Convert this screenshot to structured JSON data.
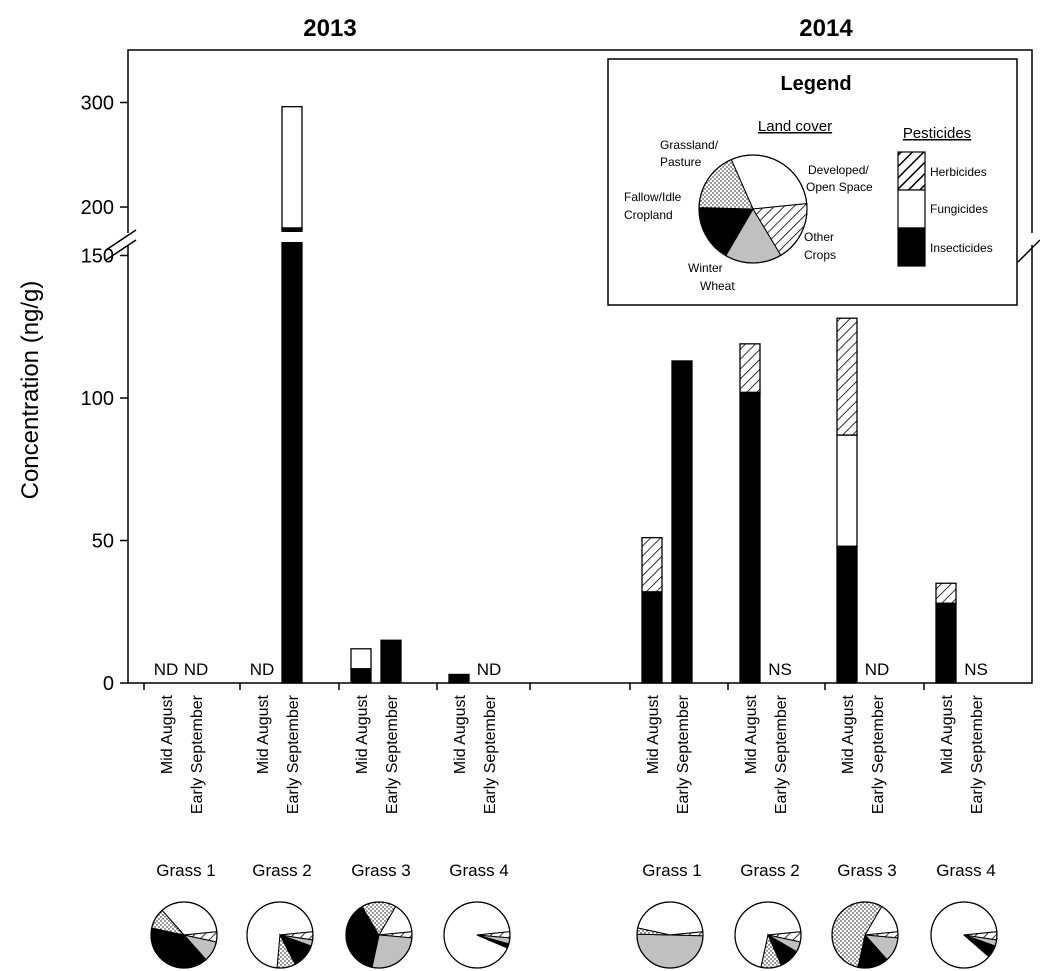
{
  "chart_data": {
    "type": "bar",
    "stacked": true,
    "ylabel": "Concentration (ng/g)",
    "y_axis_break": [
      150,
      200
    ],
    "yticks": [
      "0",
      "50",
      "100",
      "150",
      "200",
      "300"
    ],
    "panels": [
      {
        "year": "2013",
        "sites": [
          {
            "name": "Grass 1",
            "samples": [
              {
                "date": "Mid August",
                "insecticides": null,
                "fungicides": null,
                "herbicides": null,
                "note": "ND"
              },
              {
                "date": "Early September",
                "insecticides": null,
                "fungicides": null,
                "herbicides": null,
                "note": "ND"
              }
            ],
            "land_cover": {
              "Grassland/Pasture": 35,
              "Developed/Open Space": 5,
              "Other Crops": 10,
              "Winter Wheat": 40,
              "Fallow/Idle Cropland": 10
            }
          },
          {
            "name": "Grass 2",
            "samples": [
              {
                "date": "Mid August",
                "insecticides": null,
                "fungicides": null,
                "herbicides": null,
                "note": "ND"
              },
              {
                "date": "Early September",
                "insecticides": 180,
                "fungicides": 116,
                "herbicides": 0,
                "note": ""
              }
            ],
            "land_cover": {
              "Grassland/Pasture": 72,
              "Developed/Open Space": 4,
              "Other Crops": 3,
              "Winter Wheat": 12,
              "Fallow/Idle Cropland": 9
            }
          },
          {
            "name": "Grass 3",
            "samples": [
              {
                "date": "Mid August",
                "insecticides": 5,
                "fungicides": 7,
                "herbicides": 0,
                "note": ""
              },
              {
                "date": "Early September",
                "insecticides": 15,
                "fungicides": 0,
                "herbicides": 0,
                "note": ""
              }
            ],
            "land_cover": {
              "Grassland/Pasture": 15,
              "Developed/Open Space": 3,
              "Other Crops": 27,
              "Winter Wheat": 38,
              "Fallow/Idle Cropland": 17
            }
          },
          {
            "name": "Grass 4",
            "samples": [
              {
                "date": "Mid August",
                "insecticides": 3,
                "fungicides": 0,
                "herbicides": 0,
                "note": ""
              },
              {
                "date": "Early September",
                "insecticides": null,
                "fungicides": null,
                "herbicides": null,
                "note": "ND"
              }
            ],
            "land_cover": {
              "Grassland/Pasture": 92,
              "Developed/Open Space": 3,
              "Other Crops": 3,
              "Winter Wheat": 2,
              "Fallow/Idle Cropland": 0
            }
          }
        ]
      },
      {
        "year": "2014",
        "sites": [
          {
            "name": "Grass 1",
            "samples": [
              {
                "date": "Mid August",
                "insecticides": 32,
                "fungicides": 0,
                "herbicides": 19,
                "note": ""
              },
              {
                "date": "Early September",
                "insecticides": 113,
                "fungicides": 0,
                "herbicides": 0,
                "note": ""
              }
            ],
            "land_cover": {
              "Grassland/Pasture": 45,
              "Developed/Open Space": 2,
              "Other Crops": 50,
              "Winter Wheat": 0,
              "Fallow/Idle Cropland": 3
            }
          },
          {
            "name": "Grass 2",
            "samples": [
              {
                "date": "Mid August",
                "insecticides": 102,
                "fungicides": 0,
                "herbicides": 17,
                "note": ""
              },
              {
                "date": "Early September",
                "insecticides": null,
                "fungicides": null,
                "herbicides": null,
                "note": "NS"
              }
            ],
            "land_cover": {
              "Grassland/Pasture": 70,
              "Developed/Open Space": 5,
              "Other Crops": 5,
              "Winter Wheat": 10,
              "Fallow/Idle Cropland": 10
            }
          },
          {
            "name": "Grass 3",
            "samples": [
              {
                "date": "Mid August",
                "insecticides": 48,
                "fungicides": 39,
                "herbicides": 41,
                "note": ""
              },
              {
                "date": "Early September",
                "insecticides": null,
                "fungicides": null,
                "herbicides": null,
                "note": "ND"
              }
            ],
            "land_cover": {
              "Grassland/Pasture": 15,
              "Developed/Open Space": 3,
              "Other Crops": 12,
              "Winter Wheat": 15,
              "Fallow/Idle Cropland": 55
            }
          },
          {
            "name": "Grass 4",
            "samples": [
              {
                "date": "Mid August",
                "insecticides": 28,
                "fungicides": 0,
                "herbicides": 7,
                "note": ""
              },
              {
                "date": "Early September",
                "insecticides": null,
                "fungicides": null,
                "herbicides": null,
                "note": "NS"
              }
            ],
            "land_cover": {
              "Grassland/Pasture": 87,
              "Developed/Open Space": 4,
              "Other Crops": 3,
              "Winter Wheat": 6,
              "Fallow/Idle Cropland": 0
            }
          }
        ]
      }
    ],
    "legend": {
      "title": "Legend",
      "land_cover_title": "Land cover",
      "pesticides_title": "Pesticides",
      "land_cover_labels": [
        "Grassland/",
        "Pasture",
        "Developed/",
        "Open Space",
        "Fallow/Idle",
        "Cropland",
        "Other",
        "Crops",
        "Winter",
        "Wheat"
      ],
      "pesticide_labels": [
        "Herbicides",
        "Fungicides",
        "Insecticides"
      ],
      "placement": "top-right"
    },
    "colors": {
      "insecticides": "#000000",
      "fungicides": "#ffffff",
      "herbicides": "hatched",
      "Grassland/Pasture": "#ffffff",
      "Developed/Open Space": "hatched",
      "Other Crops": "#c0c0c0",
      "Winter Wheat": "#000000",
      "Fallow/Idle Cropland": "dotted"
    }
  }
}
